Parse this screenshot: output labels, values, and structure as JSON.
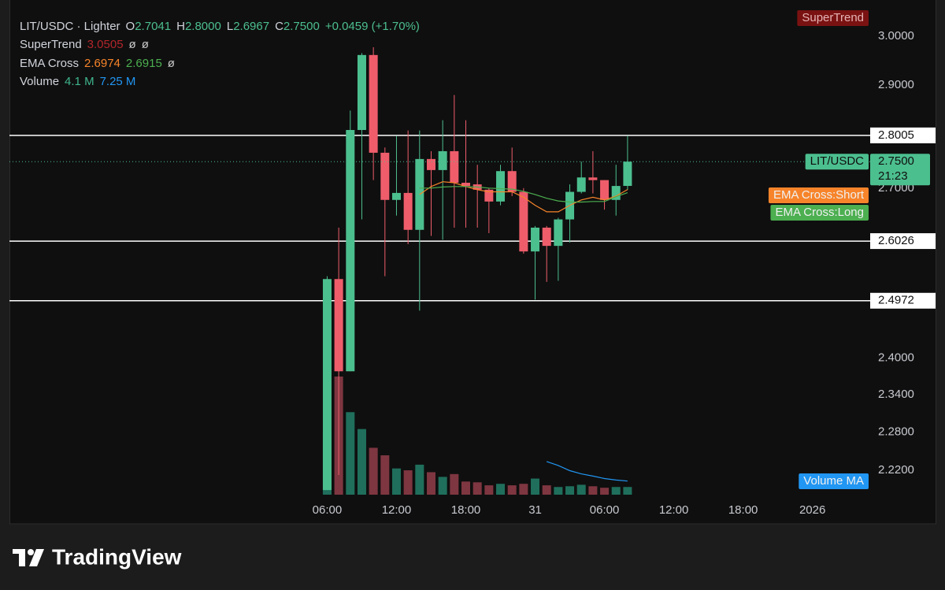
{
  "chart_data": {
    "type": "candlestick",
    "title": "LIT/USDC · Lighter",
    "legend": {
      "ohlc": [
        {
          "key": "O",
          "value": "2.7041"
        },
        {
          "key": "H",
          "value": "2.8000"
        },
        {
          "key": "L",
          "value": "2.6967"
        },
        {
          "key": "C",
          "value": "2.7500"
        }
      ],
      "change": "+0.0459 (+1.70%)",
      "indicators": [
        {
          "name": "SuperTrend",
          "values": [
            "3.0505",
            "ø",
            "ø"
          ],
          "colors": [
            "#b3262b",
            "#c8c8c8",
            "#c8c8c8"
          ]
        },
        {
          "name": "EMA Cross",
          "values": [
            "2.6974",
            "2.6915",
            "ø"
          ],
          "colors": [
            "#f7842a",
            "#4caf50",
            "#c8c8c8"
          ]
        },
        {
          "name": "Volume",
          "values": [
            "4.1 M",
            "7.25 M"
          ],
          "colors": [
            "#3fb58c",
            "#2196f3"
          ]
        }
      ]
    },
    "x": [
      6,
      7,
      8,
      9,
      10,
      11,
      12,
      13,
      14,
      15,
      16,
      17,
      18,
      19,
      20,
      21,
      22,
      23,
      24,
      25,
      26,
      27,
      28,
      29,
      30,
      31,
      32
    ],
    "open": [
      2.19,
      2.535,
      2.378,
      2.811,
      2.961,
      2.767,
      2.678,
      2.691,
      2.623,
      2.755,
      2.734,
      2.77,
      2.71,
      2.707,
      2.697,
      2.675,
      2.732,
      2.693,
      2.584,
      2.627,
      2.594,
      2.642,
      2.693,
      2.72,
      2.715,
      2.678,
      2.7041
    ],
    "high": [
      2.54,
      2.627,
      2.849,
      2.965,
      2.977,
      2.777,
      2.8,
      2.81,
      2.81,
      2.77,
      2.83,
      2.88,
      2.83,
      2.744,
      2.7,
      2.744,
      2.777,
      2.7,
      2.63,
      2.63,
      2.645,
      2.707,
      2.75,
      2.77,
      2.715,
      2.744,
      2.8
    ],
    "low": [
      2.19,
      2.213,
      2.378,
      2.642,
      2.715,
      2.54,
      2.649,
      2.597,
      2.48,
      2.612,
      2.605,
      2.627,
      2.627,
      2.627,
      2.617,
      2.668,
      2.685,
      2.58,
      2.499,
      2.53,
      2.532,
      2.6,
      2.69,
      2.69,
      2.66,
      2.649,
      2.6967
    ],
    "close": [
      2.535,
      2.378,
      2.811,
      2.961,
      2.767,
      2.678,
      2.691,
      2.623,
      2.755,
      2.734,
      2.77,
      2.71,
      2.704,
      2.697,
      2.675,
      2.732,
      2.693,
      2.584,
      2.627,
      2.594,
      2.642,
      2.693,
      2.72,
      2.715,
      2.678,
      2.704,
      2.75
    ],
    "up_color": "#4cbf8f",
    "down_color": "#ef5d6b",
    "volume": {
      "name": "Volume",
      "values": [
        33,
        63,
        44,
        35,
        25,
        21,
        14,
        13,
        16,
        12,
        9.5,
        11,
        7,
        6.6,
        5,
        5.8,
        5,
        5.8,
        8.6,
        5,
        4.1,
        4.5,
        5.3,
        4.5,
        3.7,
        4.1,
        4.1
      ],
      "up_color": "#1f6f5c",
      "down_color": "#7e3640"
    },
    "overlays": [
      {
        "name": "EMA Cross:Short",
        "color": "#f7842a",
        "values": [
          null,
          null,
          null,
          null,
          null,
          null,
          null,
          null,
          2.688,
          2.703,
          2.712,
          2.71,
          2.703,
          2.697,
          2.693,
          2.693,
          2.693,
          2.683,
          2.668,
          2.656,
          2.656,
          2.668,
          2.678,
          2.683,
          2.678,
          2.685,
          2.6974
        ]
      },
      {
        "name": "EMA Cross:Long",
        "color": "#4caf50",
        "values": [
          null,
          null,
          null,
          null,
          null,
          null,
          null,
          null,
          2.7,
          2.7,
          2.702,
          2.703,
          2.703,
          2.702,
          2.7,
          2.699,
          2.698,
          2.694,
          2.688,
          2.681,
          2.676,
          2.674,
          2.674,
          2.675,
          2.675,
          2.684,
          2.6915
        ]
      },
      {
        "name": "Volume MA",
        "color": "#2196f3",
        "axis": "volume",
        "values": [
          null,
          null,
          null,
          null,
          null,
          null,
          null,
          null,
          null,
          null,
          null,
          null,
          null,
          null,
          null,
          null,
          null,
          null,
          null,
          17.7,
          15.6,
          12.8,
          11.1,
          9.9,
          8.6,
          7.8,
          7.25
        ]
      }
    ],
    "badges": [
      {
        "name": "SuperTrend",
        "color": "#7a1212"
      }
    ],
    "price_lines": [
      {
        "value": 2.8005,
        "label": "2.8005"
      },
      {
        "value": 2.6026,
        "label": "2.6026"
      },
      {
        "value": 2.4972,
        "label": "2.4972"
      }
    ],
    "last_price": {
      "value": 2.75,
      "label": "2.7500",
      "name": "LIT/USDC",
      "countdown": "21:23",
      "color": "#4cbf8f"
    },
    "ylim": [
      2.183,
      3.056
    ],
    "log_scale": true,
    "yticks": [
      {
        "value": 3,
        "label": "3.0000"
      },
      {
        "value": 2.9,
        "label": "2.9000"
      },
      {
        "value": 2.7,
        "label": "2.7000"
      },
      {
        "value": 2.4,
        "label": "2.4000"
      },
      {
        "value": 2.34,
        "label": "2.3400"
      },
      {
        "value": 2.28,
        "label": "2.2800"
      },
      {
        "value": 2.22,
        "label": "2.2200"
      }
    ],
    "xlim": [
      -21.5,
      53
    ],
    "xticks": [
      {
        "value": 6,
        "label": "06:00"
      },
      {
        "value": 12,
        "label": "12:00"
      },
      {
        "value": 18,
        "label": "18:00"
      },
      {
        "value": 24,
        "label": "31"
      },
      {
        "value": 30,
        "label": "06:00"
      },
      {
        "value": 36,
        "label": "12:00"
      },
      {
        "value": 42,
        "label": "18:00"
      },
      {
        "value": 48,
        "label": "2026"
      }
    ],
    "grid": false
  },
  "footer": {
    "brand": "TradingView"
  }
}
